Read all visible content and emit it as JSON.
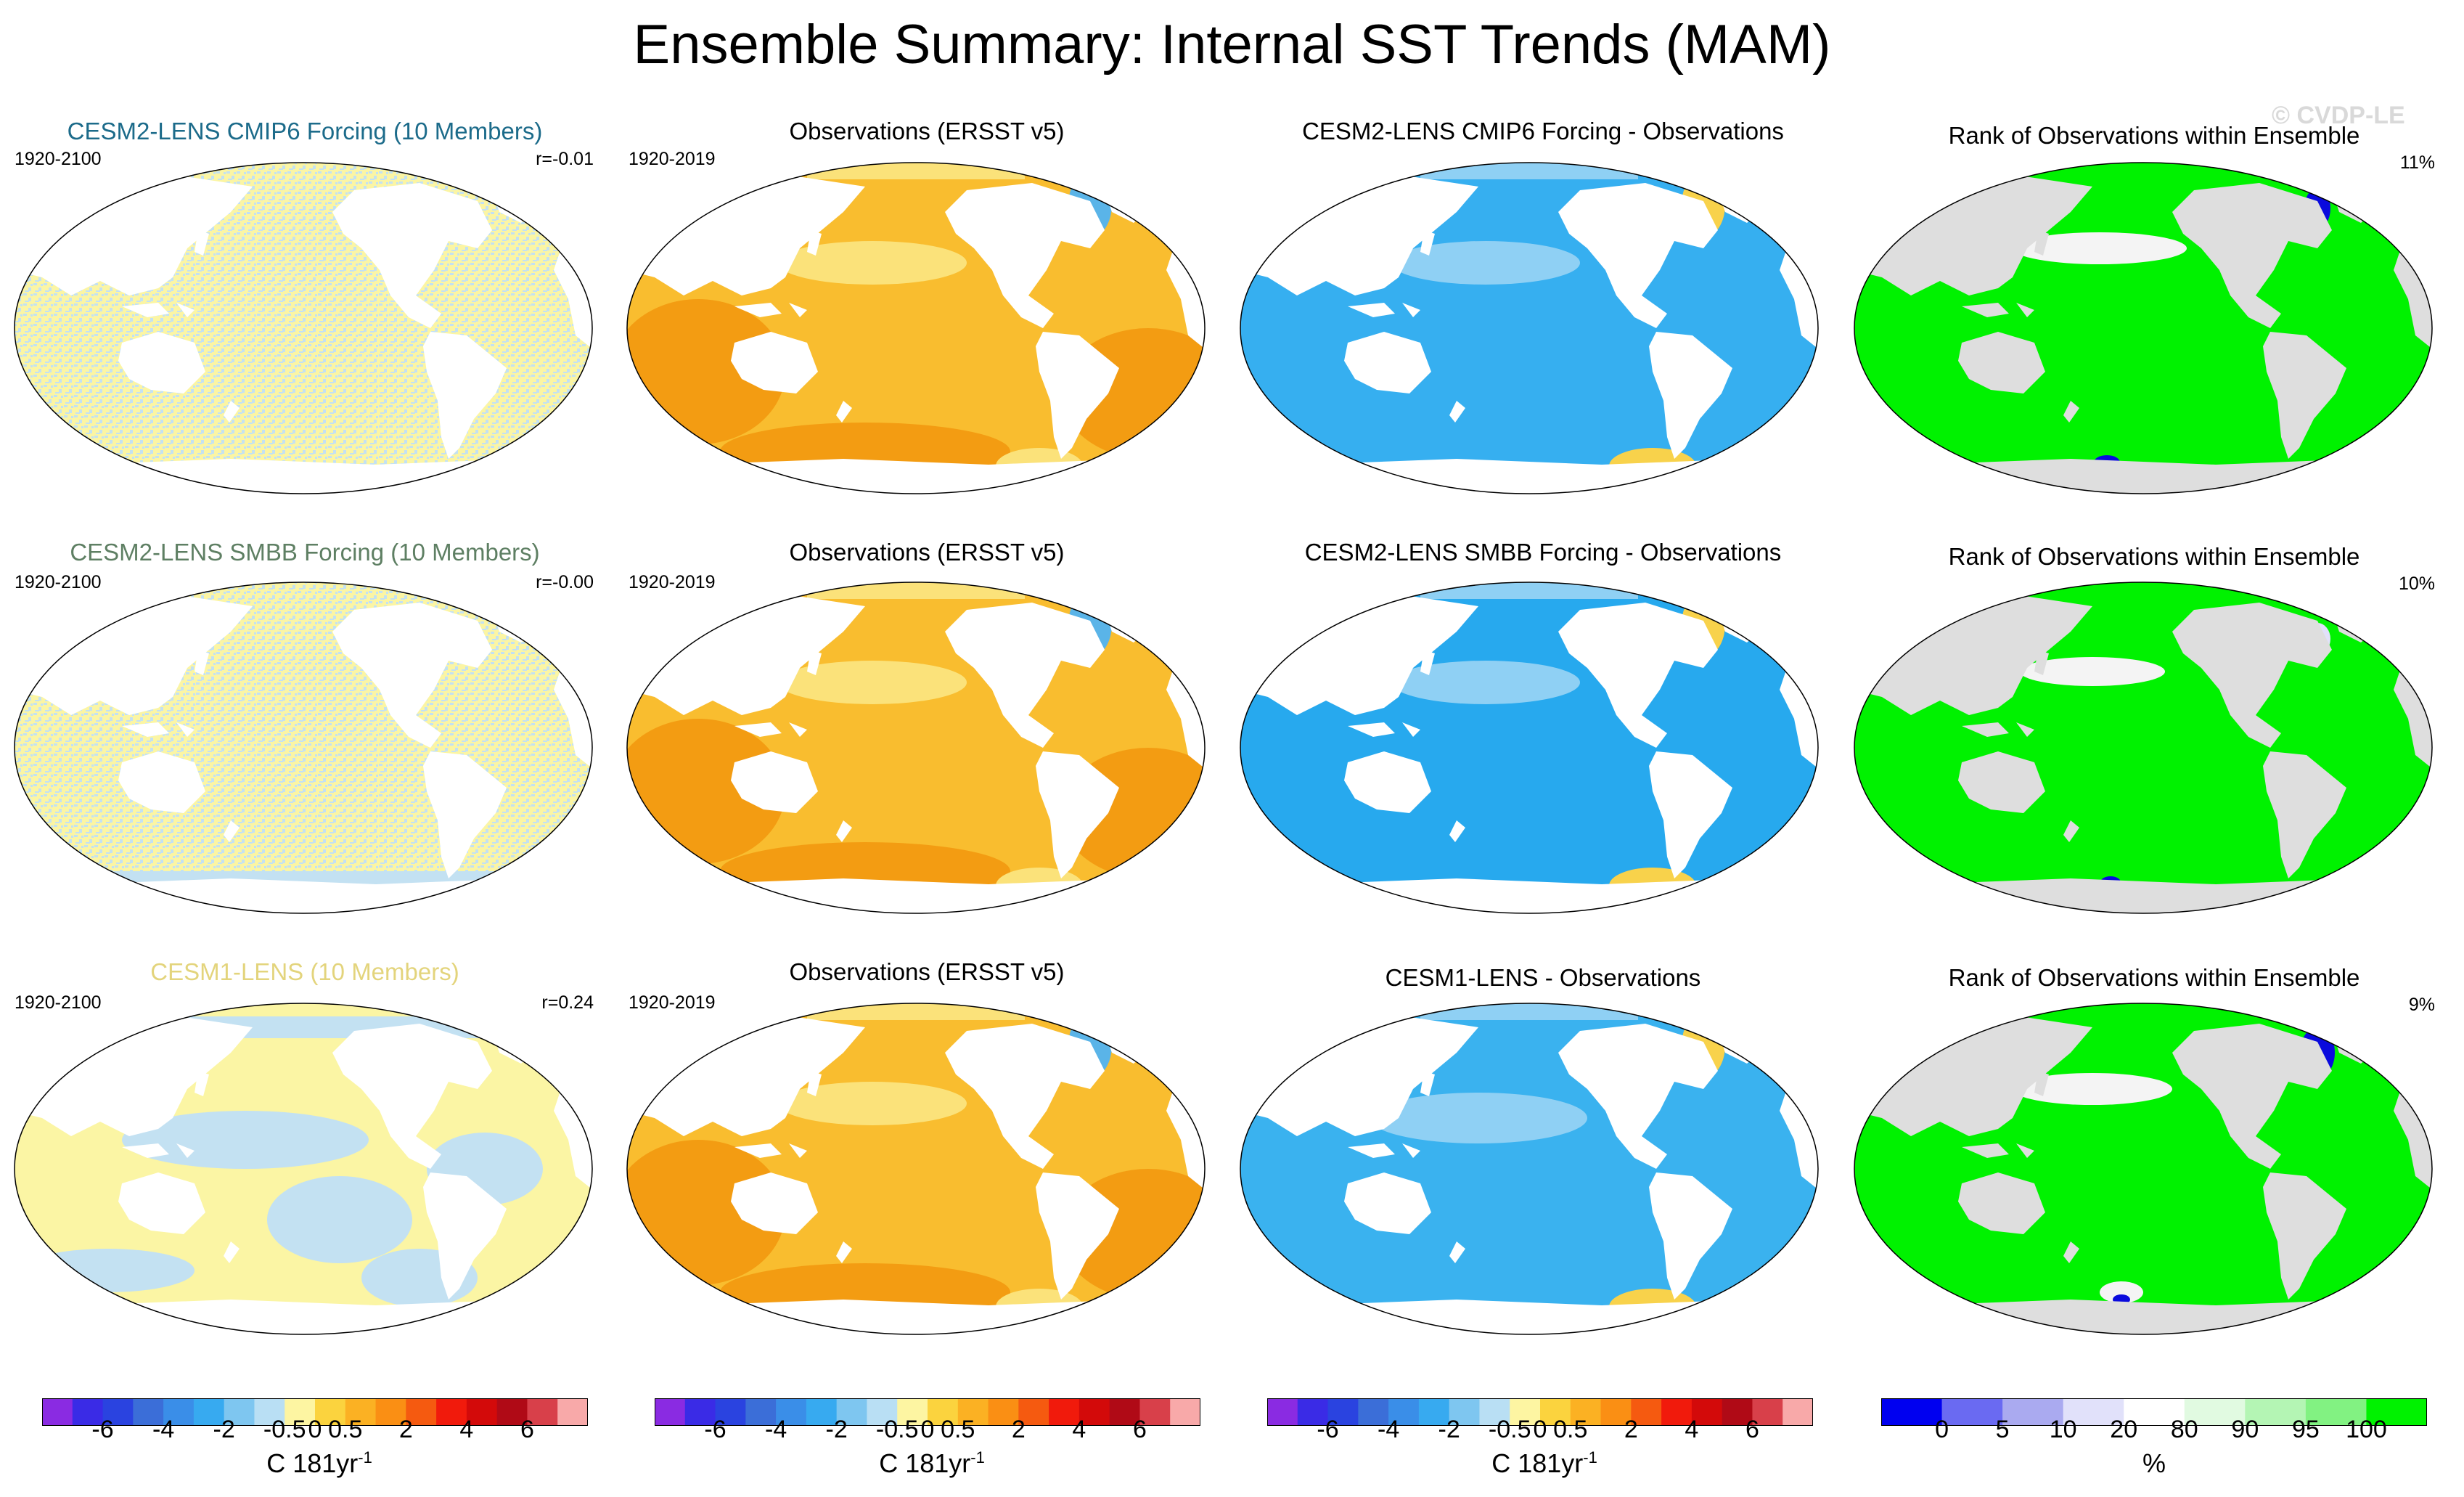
{
  "title": "Ensemble Summary: Internal SST Trends (MAM)",
  "watermark": "© CVDP-LE",
  "colors": {
    "land": "#ffffff",
    "rank_land": "#dedede",
    "stipple_a": "#fbf5a4",
    "stipple_b": "#c3e1f2",
    "obs_base": "#f9bd2f",
    "obs_dark": "#f39c12",
    "obs_light": "#fbe27a",
    "obs_cold": "#5ab4e8",
    "diff_base": "#27a9ee",
    "diff_light": "#8fd0f4",
    "diff_warm": "#f8d24b",
    "rank_green": "#00f200",
    "rank_blue": "#0a0add",
    "rank_white": "#f4f4f4",
    "model_titles": [
      "#1c6b8a",
      "#5e7f63",
      "#e3d47c"
    ]
  },
  "rows": [
    {
      "model_title": "CESM2-LENS CMIP6 Forcing (10 Members)",
      "model_years": "1920-2100",
      "model_r": "r=-0.01",
      "obs_title": "Observations (ERSST v5)",
      "obs_years": "1920-2019",
      "diff_title": "CESM2-LENS CMIP6 Forcing - Observations",
      "rank_title": "Rank of Observations within Ensemble",
      "rank_pct": "11%"
    },
    {
      "model_title": "CESM2-LENS SMBB Forcing (10 Members)",
      "model_years": "1920-2100",
      "model_r": "r=-0.00",
      "obs_title": "Observations (ERSST v5)",
      "obs_years": "1920-2019",
      "diff_title": "CESM2-LENS SMBB Forcing - Observations",
      "rank_title": "Rank of Observations within Ensemble",
      "rank_pct": "10%"
    },
    {
      "model_title": "CESM1-LENS (10 Members)",
      "model_years": "1920-2100",
      "model_r": "r=0.24",
      "obs_title": "Observations (ERSST v5)",
      "obs_years": "1920-2019",
      "diff_title": "CESM1-LENS - Observations",
      "rank_title": "Rank of Observations within Ensemble",
      "rank_pct": "9%"
    }
  ],
  "trend_colorbar": {
    "colors": [
      "#8a2be2",
      "#3a2be6",
      "#2a43e0",
      "#3b6ed8",
      "#3a8ee8",
      "#37aaf0",
      "#7ec6f0",
      "#b9dff4",
      "#fdf5a2",
      "#fbd33e",
      "#fbb123",
      "#fa8f14",
      "#f55a10",
      "#f11a0c",
      "#d30a0a",
      "#b00a16",
      "#d8404a",
      "#f8a9a9"
    ],
    "ticks": [
      "-6",
      "-4",
      "-2",
      "-0.5",
      "0",
      "0.5",
      "2",
      "4",
      "6"
    ],
    "units": "C 181yr",
    "units_sup": "-1"
  },
  "rank_colorbar": {
    "colors": [
      "#0000f0",
      "#6a6af2",
      "#aaaaf0",
      "#e1e1fa",
      "#ffffff",
      "#e1fae1",
      "#b4f5b4",
      "#82f282",
      "#00f200"
    ],
    "ticks": [
      "0",
      "5",
      "10",
      "20",
      "80",
      "90",
      "95",
      "100"
    ],
    "units": "%"
  },
  "chart_data": {
    "type": "map",
    "panels_per_row": [
      "ensemble mean trend",
      "observed trend",
      "difference",
      "rank"
    ],
    "rows": 3,
    "projection": "Robinson (Pacific-centered)"
  }
}
